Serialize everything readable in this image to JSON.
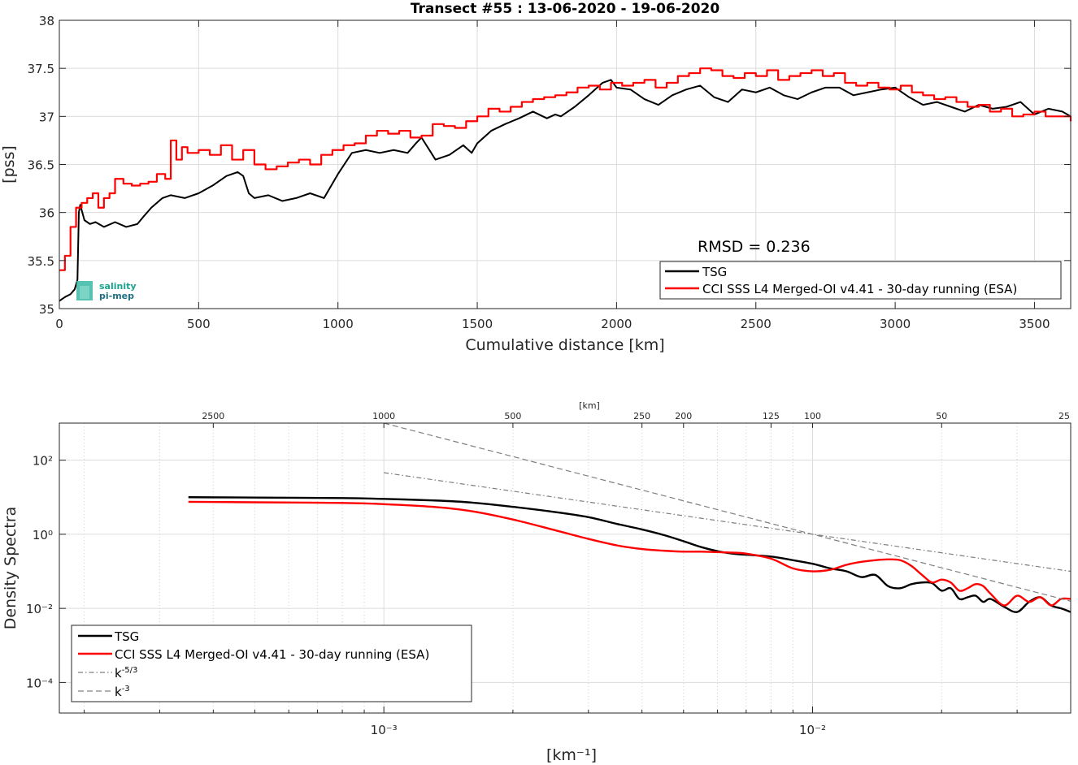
{
  "chart_data": [
    {
      "type": "line",
      "title": "Transect #55 : 13-06-2020 - 19-06-2020",
      "xlabel": "Cumulative distance [km]",
      "ylabel": "[pss]",
      "xlim": [
        0,
        3630
      ],
      "ylim": [
        35,
        38
      ],
      "xticks": [
        "0",
        "500",
        "1000",
        "1500",
        "2000",
        "2500",
        "3000",
        "3500"
      ],
      "yticks": [
        "35",
        "35.5",
        "36",
        "36.5",
        "37",
        "37.5",
        "38"
      ],
      "grid": true,
      "legend_position": "bottom-right",
      "annotation": "RMSD = 0.236",
      "logo_text": [
        "salinity",
        "pi-mep"
      ],
      "series": [
        {
          "name": "TSG",
          "color": "#000000",
          "x": [
            0,
            20,
            40,
            55,
            65,
            70,
            75,
            90,
            110,
            130,
            160,
            200,
            240,
            280,
            300,
            330,
            370,
            400,
            450,
            500,
            550,
            600,
            640,
            660,
            680,
            700,
            750,
            800,
            850,
            900,
            950,
            1000,
            1050,
            1100,
            1150,
            1200,
            1250,
            1280,
            1300,
            1350,
            1400,
            1450,
            1480,
            1500,
            1550,
            1600,
            1650,
            1700,
            1750,
            1780,
            1800,
            1850,
            1900,
            1950,
            1980,
            2000,
            2050,
            2100,
            2150,
            2200,
            2250,
            2300,
            2350,
            2400,
            2450,
            2500,
            2550,
            2600,
            2650,
            2700,
            2750,
            2800,
            2850,
            2900,
            2950,
            3000,
            3050,
            3100,
            3150,
            3200,
            3250,
            3300,
            3350,
            3400,
            3450,
            3500,
            3550,
            3600,
            3630
          ],
          "y": [
            35.08,
            35.12,
            35.15,
            35.2,
            35.3,
            36.0,
            36.08,
            35.92,
            35.88,
            35.9,
            35.85,
            35.9,
            35.85,
            35.88,
            35.95,
            36.05,
            36.15,
            36.18,
            36.15,
            36.2,
            36.28,
            36.38,
            36.42,
            36.38,
            36.2,
            36.15,
            36.18,
            36.12,
            36.15,
            36.2,
            36.15,
            36.4,
            36.62,
            36.65,
            36.62,
            36.65,
            36.62,
            36.72,
            36.78,
            36.55,
            36.6,
            36.7,
            36.62,
            36.72,
            36.85,
            36.92,
            36.98,
            37.05,
            36.98,
            37.02,
            37.0,
            37.1,
            37.22,
            37.35,
            37.38,
            37.3,
            37.28,
            37.18,
            37.12,
            37.22,
            37.28,
            37.32,
            37.2,
            37.15,
            37.28,
            37.25,
            37.3,
            37.22,
            37.18,
            37.25,
            37.3,
            37.3,
            37.22,
            37.25,
            37.28,
            37.3,
            37.2,
            37.12,
            37.15,
            37.1,
            37.05,
            37.12,
            37.08,
            37.1,
            37.15,
            37.02,
            37.08,
            37.05,
            37.0
          ]
        },
        {
          "name": "CCI SSS L4 Merged-OI v4.41 - 30-day running (ESA)",
          "color": "#ff0000",
          "step": true,
          "x": [
            0,
            20,
            40,
            60,
            80,
            100,
            120,
            140,
            160,
            180,
            200,
            230,
            260,
            290,
            320,
            350,
            380,
            400,
            420,
            440,
            460,
            500,
            540,
            580,
            620,
            660,
            700,
            740,
            780,
            820,
            860,
            900,
            940,
            980,
            1020,
            1060,
            1100,
            1140,
            1180,
            1220,
            1260,
            1300,
            1340,
            1380,
            1420,
            1460,
            1500,
            1540,
            1580,
            1620,
            1660,
            1700,
            1740,
            1780,
            1820,
            1860,
            1900,
            1940,
            1980,
            2020,
            2060,
            2100,
            2140,
            2180,
            2220,
            2260,
            2300,
            2340,
            2380,
            2420,
            2460,
            2500,
            2540,
            2580,
            2620,
            2660,
            2700,
            2740,
            2780,
            2820,
            2860,
            2900,
            2940,
            2980,
            3020,
            3060,
            3100,
            3140,
            3180,
            3220,
            3260,
            3300,
            3340,
            3380,
            3420,
            3460,
            3500,
            3540,
            3580,
            3630
          ],
          "y": [
            35.4,
            35.55,
            35.85,
            36.05,
            36.1,
            36.15,
            36.2,
            36.05,
            36.15,
            36.2,
            36.35,
            36.3,
            36.28,
            36.3,
            36.32,
            36.4,
            36.35,
            36.75,
            36.55,
            36.68,
            36.62,
            36.65,
            36.6,
            36.7,
            36.55,
            36.65,
            36.5,
            36.45,
            36.48,
            36.52,
            36.55,
            36.5,
            36.6,
            36.65,
            36.7,
            36.72,
            36.8,
            36.85,
            36.82,
            36.85,
            36.78,
            36.8,
            36.92,
            36.9,
            36.88,
            36.95,
            37.0,
            37.08,
            37.05,
            37.1,
            37.15,
            37.18,
            37.2,
            37.22,
            37.25,
            37.3,
            37.32,
            37.28,
            37.35,
            37.32,
            37.35,
            37.38,
            37.3,
            37.35,
            37.42,
            37.45,
            37.5,
            37.48,
            37.42,
            37.4,
            37.45,
            37.42,
            37.48,
            37.38,
            37.42,
            37.45,
            37.48,
            37.42,
            37.45,
            37.35,
            37.32,
            37.35,
            37.3,
            37.28,
            37.32,
            37.25,
            37.22,
            37.18,
            37.2,
            37.15,
            37.1,
            37.12,
            37.05,
            37.08,
            37.0,
            37.02,
            37.05,
            37.0,
            37.0,
            36.95
          ]
        }
      ]
    },
    {
      "type": "line",
      "xlabel": "[km⁻¹]",
      "ylabel": "Density Spectra",
      "top_axis_label": "[km]",
      "xscale": "log",
      "yscale": "log",
      "xlim": [
        0.000175,
        0.04
      ],
      "ylim": [
        1.5e-05,
        1000
      ],
      "xticks": [
        "10⁻³",
        "10⁻²"
      ],
      "yticks": [
        "10⁻⁴",
        "10⁻²",
        "10⁰",
        "10²"
      ],
      "top_ticks": [
        "2500",
        "1000",
        "500",
        "250",
        "200",
        "125",
        "100",
        "50",
        "25"
      ],
      "grid": true,
      "legend_position": "bottom-left",
      "series": [
        {
          "name": "TSG",
          "color": "#000000",
          "x": [
            0.00035,
            0.0005,
            0.0008,
            0.001,
            0.0013,
            0.0016,
            0.002,
            0.0025,
            0.003,
            0.0035,
            0.004,
            0.0045,
            0.005,
            0.0055,
            0.006,
            0.0065,
            0.007,
            0.008,
            0.009,
            0.01,
            0.011,
            0.012,
            0.013,
            0.014,
            0.015,
            0.016,
            0.017,
            0.018,
            0.019,
            0.02,
            0.021,
            0.022,
            0.023,
            0.024,
            0.025,
            0.026,
            0.028,
            0.03,
            0.032,
            0.034,
            0.036,
            0.038,
            0.04
          ],
          "y": [
            10,
            9.8,
            9.5,
            9.0,
            8.2,
            7.2,
            5.5,
            4.0,
            2.9,
            1.9,
            1.35,
            0.95,
            0.65,
            0.45,
            0.35,
            0.3,
            0.28,
            0.25,
            0.2,
            0.16,
            0.12,
            0.1,
            0.07,
            0.08,
            0.04,
            0.035,
            0.045,
            0.05,
            0.048,
            0.03,
            0.035,
            0.018,
            0.02,
            0.022,
            0.015,
            0.018,
            0.011,
            0.008,
            0.015,
            0.02,
            0.012,
            0.01,
            0.008
          ]
        },
        {
          "name": "CCI SSS L4 Merged-OI v4.41 - 30-day running (ESA)",
          "color": "#ff0000",
          "x": [
            0.00035,
            0.0005,
            0.0008,
            0.001,
            0.0013,
            0.0016,
            0.002,
            0.0025,
            0.003,
            0.0035,
            0.004,
            0.0045,
            0.005,
            0.0055,
            0.006,
            0.0065,
            0.007,
            0.008,
            0.009,
            0.01,
            0.011,
            0.012,
            0.013,
            0.014,
            0.015,
            0.016,
            0.017,
            0.018,
            0.019,
            0.02,
            0.021,
            0.022,
            0.023,
            0.024,
            0.025,
            0.026,
            0.028,
            0.03,
            0.032,
            0.034,
            0.036,
            0.038,
            0.04
          ],
          "y": [
            7.5,
            7.3,
            7.0,
            6.5,
            5.5,
            4.2,
            2.5,
            1.3,
            0.75,
            0.5,
            0.4,
            0.36,
            0.34,
            0.34,
            0.33,
            0.32,
            0.3,
            0.22,
            0.12,
            0.1,
            0.11,
            0.15,
            0.18,
            0.2,
            0.21,
            0.2,
            0.14,
            0.08,
            0.05,
            0.06,
            0.05,
            0.03,
            0.035,
            0.045,
            0.04,
            0.025,
            0.012,
            0.022,
            0.015,
            0.02,
            0.012,
            0.018,
            0.018
          ]
        },
        {
          "name": "k⁻⁵ᐟ³",
          "label_base": "k",
          "label_sup": "-5/3",
          "color": "#7f7f7f",
          "dash": "dashdot",
          "x": [
            0.001,
            0.04
          ],
          "y": [
            46,
            0.1
          ]
        },
        {
          "name": "k⁻³",
          "label_base": "k",
          "label_sup": "-3",
          "color": "#7f7f7f",
          "dash": "dashed",
          "x": [
            0.001,
            0.04
          ],
          "y": [
            1000,
            0.0156
          ]
        }
      ]
    }
  ]
}
